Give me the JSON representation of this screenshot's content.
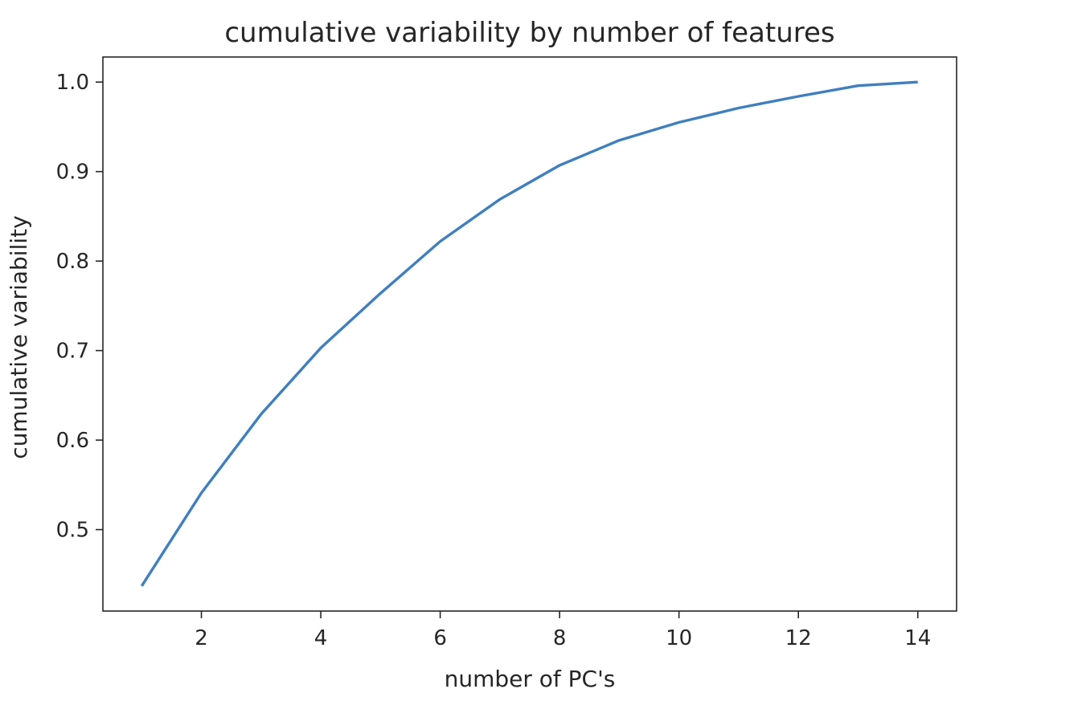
{
  "chart_data": {
    "type": "line",
    "title": "cumulative variability by number of features",
    "xlabel": "number of PC's",
    "ylabel": "cumulative variability",
    "x": [
      1,
      2,
      3,
      4,
      5,
      6,
      7,
      8,
      9,
      10,
      11,
      12,
      13,
      14
    ],
    "series": [
      {
        "values": [
          0.437,
          0.541,
          0.629,
          0.703,
          0.764,
          0.822,
          0.869,
          0.907,
          0.935,
          0.955,
          0.971,
          0.984,
          0.996,
          1.0
        ],
        "color": "#3f7fbf"
      }
    ],
    "xlim": [
      0.35,
      14.65
    ],
    "ylim": [
      0.409,
      1.028
    ],
    "xticks": [
      2,
      4,
      6,
      8,
      10,
      12,
      14
    ],
    "xtick_labels": [
      "2",
      "4",
      "6",
      "8",
      "10",
      "12",
      "14"
    ],
    "yticks": [
      0.5,
      0.6,
      0.7,
      0.8,
      0.9,
      1.0
    ],
    "ytick_labels": [
      "0.5",
      "0.6",
      "0.7",
      "0.8",
      "0.9",
      "1.0"
    ],
    "grid": false,
    "legend": "none"
  }
}
